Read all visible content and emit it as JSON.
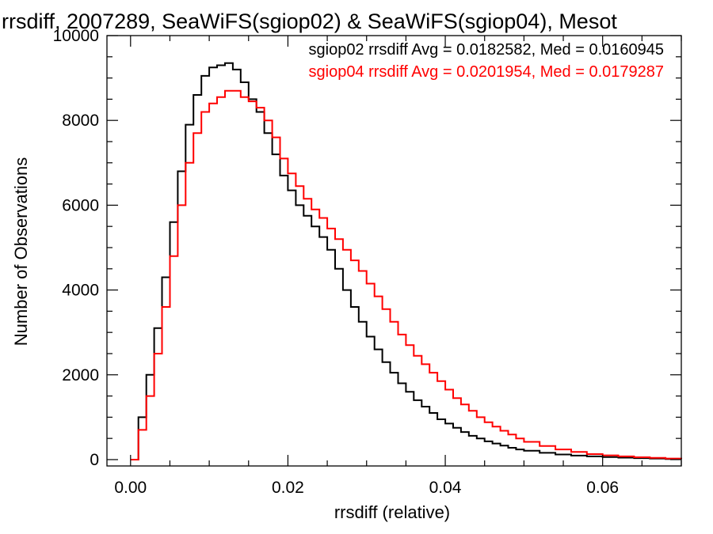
{
  "chart_data": {
    "type": "line",
    "title": "rrsdiff, 2007289, SeaWiFS(sgiop02) & SeaWiFS(sgiop04), Mesot",
    "xlabel": "rrsdiff (relative)",
    "ylabel": "Number of Observations",
    "xlim": [
      -0.003,
      0.07
    ],
    "ylim": [
      -150,
      10000
    ],
    "x_ticks": [
      0.0,
      0.02,
      0.04,
      0.06
    ],
    "x_tick_labels": [
      "0.00",
      "0.02",
      "0.04",
      "0.06"
    ],
    "y_ticks": [
      0,
      2000,
      4000,
      6000,
      8000,
      10000
    ],
    "y_tick_labels": [
      "0",
      "2000",
      "4000",
      "6000",
      "8000",
      "10000"
    ],
    "grid": false,
    "legend_position": "top-right",
    "legend": [
      "sgiop02 rrsdiff Avg = 0.0182582, Med = 0.0160945",
      "sgiop04 rrsdiff Avg = 0.0201954, Med = 0.0179287"
    ],
    "series": [
      {
        "color": "#000000",
        "step": true,
        "x": [
          0.0,
          0.001,
          0.002,
          0.003,
          0.004,
          0.005,
          0.006,
          0.007,
          0.008,
          0.009,
          0.01,
          0.011,
          0.012,
          0.013,
          0.014,
          0.015,
          0.016,
          0.017,
          0.018,
          0.019,
          0.02,
          0.021,
          0.022,
          0.023,
          0.024,
          0.025,
          0.026,
          0.027,
          0.028,
          0.029,
          0.03,
          0.031,
          0.032,
          0.033,
          0.034,
          0.035,
          0.036,
          0.037,
          0.038,
          0.039,
          0.04,
          0.041,
          0.042,
          0.043,
          0.044,
          0.045,
          0.046,
          0.047,
          0.048,
          0.049,
          0.05,
          0.052,
          0.054,
          0.056,
          0.058,
          0.06,
          0.062,
          0.064,
          0.066,
          0.068,
          0.07
        ],
        "values": [
          0,
          1000,
          2000,
          3100,
          4300,
          5600,
          6800,
          7900,
          8600,
          9050,
          9250,
          9300,
          9350,
          9200,
          8900,
          8500,
          8200,
          7700,
          7200,
          6700,
          6350,
          6000,
          5750,
          5500,
          5250,
          4950,
          4500,
          4000,
          3600,
          3250,
          2900,
          2600,
          2300,
          2050,
          1800,
          1600,
          1400,
          1250,
          1100,
          950,
          850,
          750,
          650,
          560,
          500,
          430,
          380,
          330,
          280,
          240,
          210,
          160,
          120,
          95,
          75,
          60,
          45,
          35,
          25,
          15,
          10
        ]
      },
      {
        "color": "#ff0000",
        "step": true,
        "x": [
          0.0,
          0.001,
          0.002,
          0.003,
          0.004,
          0.005,
          0.006,
          0.007,
          0.008,
          0.009,
          0.01,
          0.011,
          0.012,
          0.013,
          0.014,
          0.015,
          0.016,
          0.017,
          0.018,
          0.019,
          0.02,
          0.021,
          0.022,
          0.023,
          0.024,
          0.025,
          0.026,
          0.027,
          0.028,
          0.029,
          0.03,
          0.031,
          0.032,
          0.033,
          0.034,
          0.035,
          0.036,
          0.037,
          0.038,
          0.039,
          0.04,
          0.041,
          0.042,
          0.043,
          0.044,
          0.045,
          0.046,
          0.047,
          0.048,
          0.049,
          0.05,
          0.052,
          0.054,
          0.056,
          0.058,
          0.06,
          0.062,
          0.064,
          0.066,
          0.068,
          0.07
        ],
        "values": [
          0,
          700,
          1500,
          2500,
          3600,
          4800,
          6000,
          7000,
          7700,
          8200,
          8400,
          8550,
          8700,
          8700,
          8550,
          8450,
          8300,
          8000,
          7600,
          7100,
          6750,
          6450,
          6150,
          5900,
          5700,
          5450,
          5200,
          4950,
          4700,
          4450,
          4150,
          3850,
          3550,
          3250,
          2950,
          2700,
          2450,
          2250,
          2050,
          1850,
          1650,
          1450,
          1300,
          1150,
          1000,
          880,
          780,
          680,
          590,
          500,
          420,
          320,
          240,
          180,
          130,
          100,
          75,
          55,
          40,
          25,
          15
        ]
      }
    ]
  }
}
